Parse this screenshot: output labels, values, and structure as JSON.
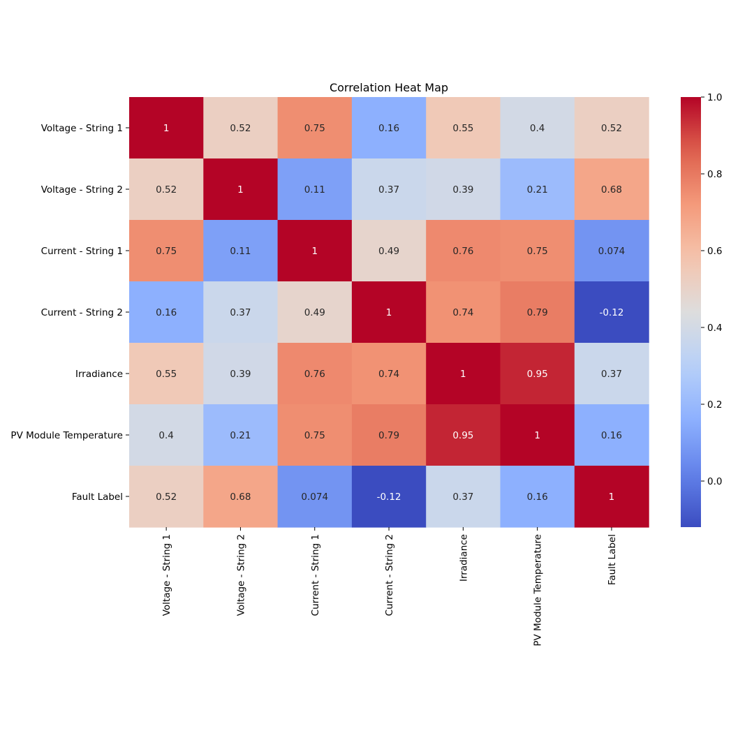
{
  "chart_data": {
    "type": "heatmap",
    "title": "Correlation Heat Map",
    "xlabel": "",
    "ylabel": "",
    "row_labels": [
      "Voltage - String 1",
      "Voltage - String 2",
      "Current - String 1",
      "Current - String 2",
      "Irradiance",
      "PV Module Temperature",
      "Fault Label"
    ],
    "col_labels": [
      "Voltage - String 1",
      "Voltage - String 2",
      "Current - String 1",
      "Current - String 2",
      "Irradiance",
      "PV Module Temperature",
      "Fault Label"
    ],
    "values": [
      [
        1,
        0.52,
        0.75,
        0.16,
        0.55,
        0.4,
        0.52
      ],
      [
        0.52,
        1,
        0.11,
        0.37,
        0.39,
        0.21,
        0.68
      ],
      [
        0.75,
        0.11,
        1,
        0.49,
        0.76,
        0.75,
        0.074
      ],
      [
        0.16,
        0.37,
        0.49,
        1,
        0.74,
        0.79,
        -0.12
      ],
      [
        0.55,
        0.39,
        0.76,
        0.74,
        1,
        0.95,
        0.37
      ],
      [
        0.4,
        0.21,
        0.75,
        0.79,
        0.95,
        1,
        0.16
      ],
      [
        0.52,
        0.68,
        0.074,
        -0.12,
        0.37,
        0.16,
        1
      ]
    ],
    "value_labels": [
      [
        "1",
        "0.52",
        "0.75",
        "0.16",
        "0.55",
        "0.4",
        "0.52"
      ],
      [
        "0.52",
        "1",
        "0.11",
        "0.37",
        "0.39",
        "0.21",
        "0.68"
      ],
      [
        "0.75",
        "0.11",
        "1",
        "0.49",
        "0.76",
        "0.75",
        "0.074"
      ],
      [
        "0.16",
        "0.37",
        "0.49",
        "1",
        "0.74",
        "0.79",
        "-0.12"
      ],
      [
        "0.55",
        "0.39",
        "0.76",
        "0.74",
        "1",
        "0.95",
        "0.37"
      ],
      [
        "0.4",
        "0.21",
        "0.75",
        "0.79",
        "0.95",
        "1",
        "0.16"
      ],
      [
        "0.52",
        "0.68",
        "0.074",
        "-0.12",
        "0.37",
        "0.16",
        "1"
      ]
    ],
    "colormap": "coolwarm",
    "vmin": -0.12,
    "vmax": 1.0,
    "colorbar_ticks": [
      0.0,
      0.2,
      0.4,
      0.6,
      0.8,
      1.0
    ],
    "colorbar_tick_labels": [
      "0.0",
      "0.2",
      "0.4",
      "0.6",
      "0.8",
      "1.0"
    ],
    "colorbar_position": "right",
    "grid": false
  }
}
